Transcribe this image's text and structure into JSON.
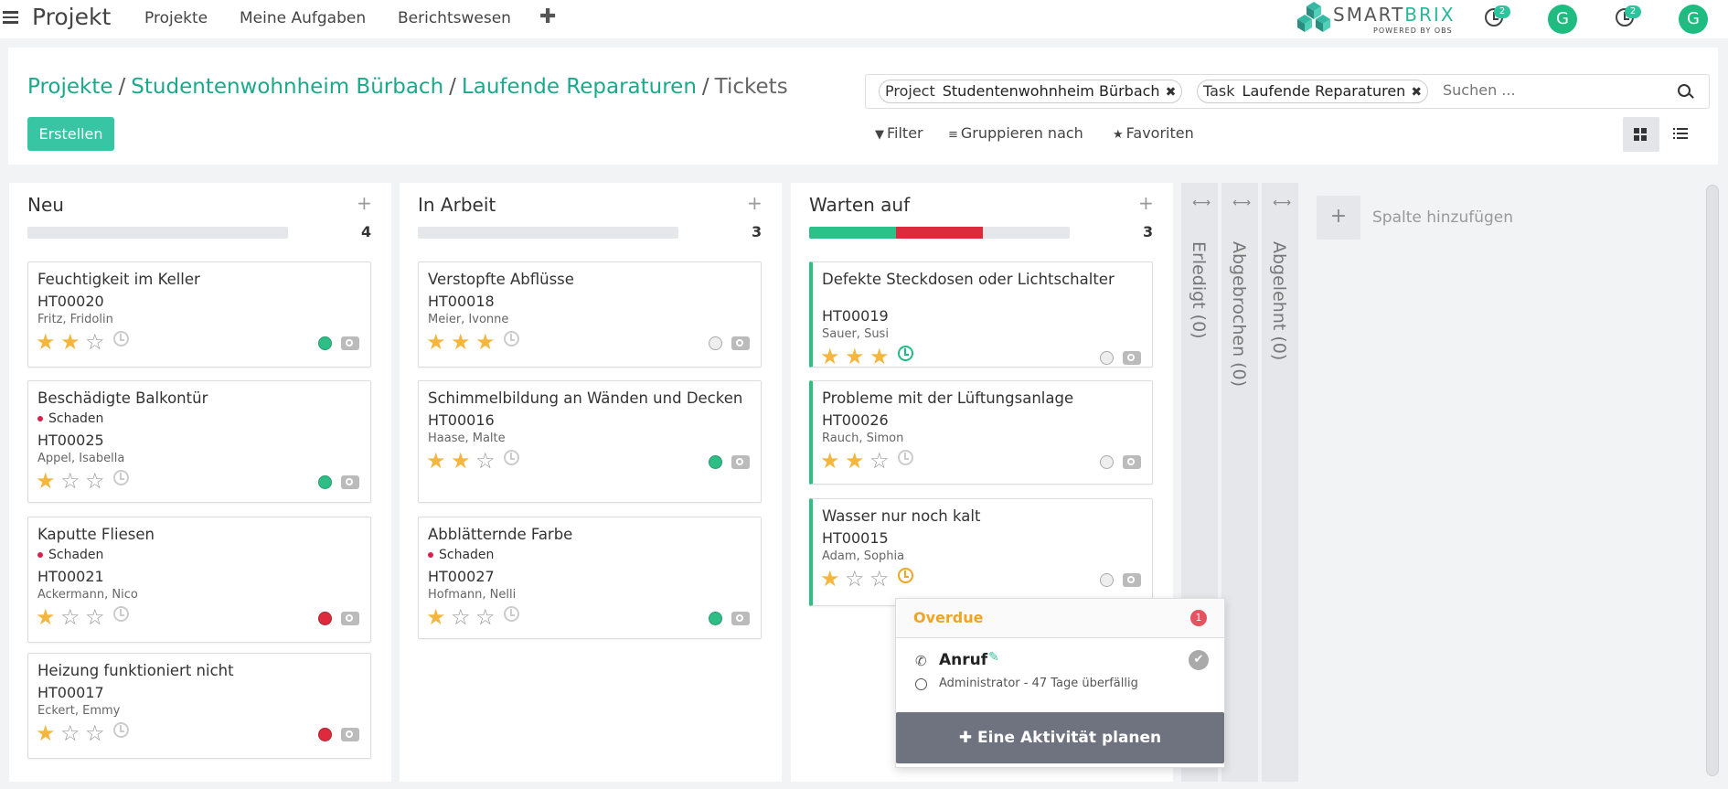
{
  "nav": {
    "brand": "Projekt",
    "menu": [
      "Projekte",
      "Meine Aufgaben",
      "Berichtswesen"
    ],
    "add": "✚",
    "logo_main": "SMART",
    "logo_accent": "BRIX",
    "logo_sub": "POWERED BY OBS",
    "badges": [
      "2",
      "2"
    ],
    "avatar": "G"
  },
  "breadcrumb": {
    "items": [
      "Projekte",
      "Studentenwohnheim Bürbach",
      "Laufende Reparaturen"
    ],
    "current": "Tickets",
    "sep": "/"
  },
  "create_label": "Erstellen",
  "search": {
    "facets": [
      {
        "label": "Project",
        "value": "Studentenwohnheim Bürbach"
      },
      {
        "label": "Task",
        "value": "Laufende Reparaturen"
      }
    ],
    "placeholder": "Suchen ...",
    "remove": "✖"
  },
  "controls": {
    "filter": "Filter",
    "group": "Gruppieren nach",
    "fav": "Favoriten"
  },
  "columns": [
    {
      "title": "Neu",
      "count": "4",
      "progress": [],
      "cards": [
        {
          "title": "Feuchtigkeit im Keller",
          "tag": "",
          "id": "HT00020",
          "person": "Fritz, Fridolin",
          "stars": 2,
          "clock": "grey",
          "status": "green"
        },
        {
          "title": "Beschädigte Balkontür",
          "tag": "Schaden",
          "id": "HT00025",
          "person": "Appel, Isabella",
          "stars": 1,
          "clock": "grey",
          "status": "green"
        },
        {
          "title": "Kaputte Fliesen",
          "tag": "Schaden",
          "id": "HT00021",
          "person": "Ackermann, Nico",
          "stars": 1,
          "clock": "grey",
          "status": "red"
        },
        {
          "title": "Heizung funktioniert nicht",
          "tag": "",
          "id": "HT00017",
          "person": "Eckert, Emmy",
          "stars": 1,
          "clock": "grey",
          "status": "red"
        }
      ]
    },
    {
      "title": "In Arbeit",
      "count": "3",
      "progress": [],
      "cards": [
        {
          "title": "Verstopfte Abflüsse",
          "tag": "",
          "id": "HT00018",
          "person": "Meier, Ivonne",
          "stars": 3,
          "clock": "grey",
          "status": "grey"
        },
        {
          "title": "Schimmelbildung an Wänden und Decken",
          "tag": "",
          "id": "HT00016",
          "person": "Haase, Malte",
          "stars": 2,
          "clock": "grey",
          "status": "green"
        },
        {
          "title": "Abblätternde Farbe",
          "tag": "Schaden",
          "id": "HT00027",
          "person": "Hofmann, Nelli",
          "stars": 1,
          "clock": "grey",
          "status": "green"
        }
      ]
    },
    {
      "title": "Warten auf",
      "count": "3",
      "progress": [
        {
          "color": "#2bc28a",
          "fraction": 0.333
        },
        {
          "color": "#dc2b3d",
          "fraction": 0.333
        }
      ],
      "cards": [
        {
          "title": "Defekte Steckdosen oder Lichtschalter",
          "tag": "",
          "id": "HT00019",
          "person": "Sauer, Susi",
          "stars": 3,
          "clock": "green",
          "status": "grey"
        },
        {
          "title": "Probleme mit der Lüftungsanlage",
          "tag": "",
          "id": "HT00026",
          "person": "Rauch, Simon",
          "stars": 2,
          "clock": "grey",
          "status": "grey"
        },
        {
          "title": "Wasser nur noch kalt",
          "tag": "",
          "id": "HT00015",
          "person": "Adam, Sophia",
          "stars": 1,
          "clock": "orange",
          "status": "grey"
        }
      ]
    }
  ],
  "folded": [
    "Erledigt (0)",
    "Abgebrochen (0)",
    "Abgelehnt (0)"
  ],
  "add_column": "Spalte hinzufügen",
  "popover": {
    "header": "Overdue",
    "count": "1",
    "activity": "Anruf",
    "meta": "Administrator - 47 Tage überfällig",
    "button": "✚ Eine Aktivität planen"
  }
}
